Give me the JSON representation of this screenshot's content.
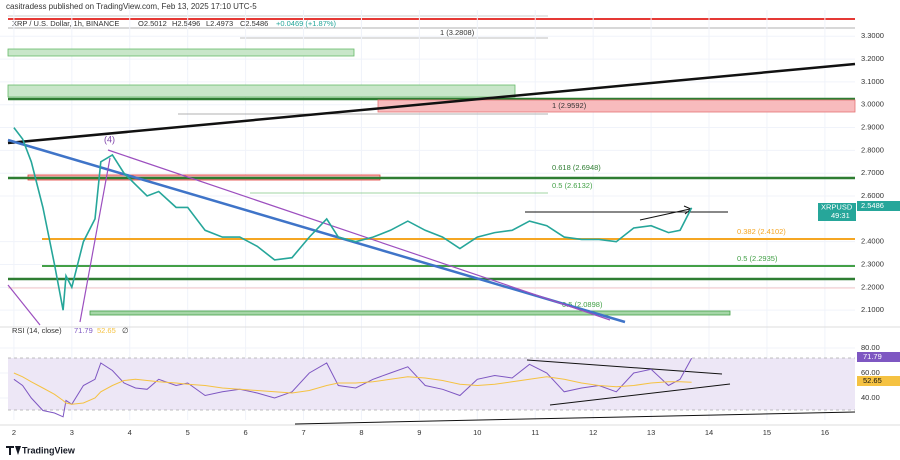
{
  "header": {
    "publisher": "casitradess published on TradingView.com, Feb 13, 2025 17:10 UTC-5",
    "symbol": "XRP / U.S. Dollar, 1h, BINANCE",
    "open": "O2.5012",
    "high": "H2.5496",
    "low": "L2.4973",
    "close": "C2.5486",
    "change": "+0.0469 (+1.87%)",
    "countdown": "49:31",
    "brand": "TradingView",
    "wave_label": "(4)",
    "fib_labels": [
      "1 (3.2808)",
      "1 (2.9592)",
      "0.618 (2.6948)",
      "0.5 (2.6132)",
      "0.382 (2.4102)",
      "0.5 (2.2935)",
      "0.5 (2.0898)"
    ]
  },
  "chart_data": [
    {
      "type": "line",
      "x": [
        2.0,
        2.15,
        2.3,
        2.5,
        2.7,
        2.85,
        2.9,
        3.0,
        3.2,
        3.4,
        3.5,
        3.7,
        3.9,
        4.1,
        4.3,
        4.5,
        4.8,
        5.0,
        5.3,
        5.6,
        5.9,
        6.2,
        6.5,
        6.8,
        7.1,
        7.4,
        7.6,
        7.9,
        8.2,
        8.5,
        8.8,
        9.1,
        9.4,
        9.7,
        10.0,
        10.3,
        10.6,
        10.9,
        11.2,
        11.5,
        11.8,
        12.1,
        12.4,
        12.7,
        13.0,
        13.3,
        13.5,
        13.7
      ],
      "series": [
        {
          "name": "XRPUSD",
          "color": "#26a69a",
          "values": [
            2.9,
            2.85,
            2.75,
            2.55,
            2.3,
            2.1,
            2.25,
            2.2,
            2.4,
            2.5,
            2.75,
            2.78,
            2.7,
            2.65,
            2.6,
            2.62,
            2.55,
            2.55,
            2.45,
            2.42,
            2.42,
            2.38,
            2.32,
            2.33,
            2.42,
            2.5,
            2.42,
            2.4,
            2.42,
            2.45,
            2.49,
            2.45,
            2.42,
            2.37,
            2.42,
            2.44,
            2.45,
            2.49,
            2.47,
            2.42,
            2.41,
            2.41,
            2.4,
            2.46,
            2.47,
            2.44,
            2.45,
            2.5486
          ],
          "last_value": 2.5486
        }
      ],
      "xlim": [
        1.76,
        16.52
      ],
      "ylim": [
        2.035,
        3.415
      ],
      "yticks": [
        {
          "value": 2.1,
          "label": "2.1000"
        },
        {
          "value": 2.2,
          "label": "2.2000"
        },
        {
          "value": 2.3,
          "label": "2.3000"
        },
        {
          "value": 2.4,
          "label": "2.4000"
        },
        {
          "value": 2.6,
          "label": "2.6000"
        },
        {
          "value": 2.7,
          "label": "2.7000"
        },
        {
          "value": 2.8,
          "label": "2.8000"
        },
        {
          "value": 2.9,
          "label": "2.9000"
        },
        {
          "value": 3.0,
          "label": "3.0000"
        },
        {
          "value": 3.1,
          "label": "3.1000"
        },
        {
          "value": 3.2,
          "label": "3.2000"
        },
        {
          "value": 3.3,
          "label": "3.3000"
        }
      ]
    },
    {
      "type": "line",
      "title": "RSI (14, close)",
      "legend_symbol": "∅",
      "x": [
        2.0,
        2.15,
        2.3,
        2.5,
        2.7,
        2.85,
        2.9,
        3.0,
        3.2,
        3.4,
        3.5,
        3.7,
        3.9,
        4.1,
        4.3,
        4.5,
        4.8,
        5.0,
        5.3,
        5.6,
        5.9,
        6.2,
        6.5,
        6.8,
        7.1,
        7.4,
        7.6,
        7.9,
        8.2,
        8.5,
        8.8,
        9.1,
        9.4,
        9.7,
        10.0,
        10.3,
        10.6,
        10.9,
        11.2,
        11.5,
        11.8,
        12.1,
        12.4,
        12.7,
        13.0,
        13.3,
        13.5,
        13.7
      ],
      "series": [
        {
          "color": "#7e57c2",
          "last_value": 71.79,
          "values": [
            55,
            50,
            40,
            30,
            28,
            25,
            38,
            35,
            50,
            55,
            68,
            62,
            52,
            48,
            47,
            55,
            50,
            52,
            42,
            45,
            47,
            44,
            40,
            45,
            60,
            68,
            50,
            48,
            55,
            60,
            65,
            50,
            47,
            42,
            55,
            58,
            56,
            67,
            60,
            45,
            48,
            50,
            45,
            60,
            63,
            50,
            55,
            71.79
          ]
        },
        {
          "color": "#f5c242",
          "last_value": 52.65,
          "values": [
            60,
            57,
            53,
            48,
            43,
            38,
            36,
            35,
            36,
            40,
            45,
            50,
            54,
            55,
            54,
            53,
            52,
            51,
            50,
            48,
            47,
            46,
            45,
            44,
            46,
            50,
            52,
            52,
            53,
            55,
            57,
            56,
            54,
            51,
            50,
            51,
            53,
            55,
            57,
            55,
            52,
            50,
            49,
            50,
            52,
            53,
            53,
            52.65
          ]
        }
      ],
      "xlim": [
        1.76,
        16.52
      ],
      "ylim": [
        22.4,
        90.4
      ],
      "yticks": [
        {
          "value": 40,
          "label": "40.00"
        },
        {
          "value": 60,
          "label": "60.00"
        },
        {
          "value": 80,
          "label": "80.00"
        }
      ],
      "xticks": [
        2,
        3,
        4,
        5,
        6,
        7,
        8,
        9,
        10,
        11,
        12,
        13,
        14,
        15,
        16
      ]
    }
  ]
}
